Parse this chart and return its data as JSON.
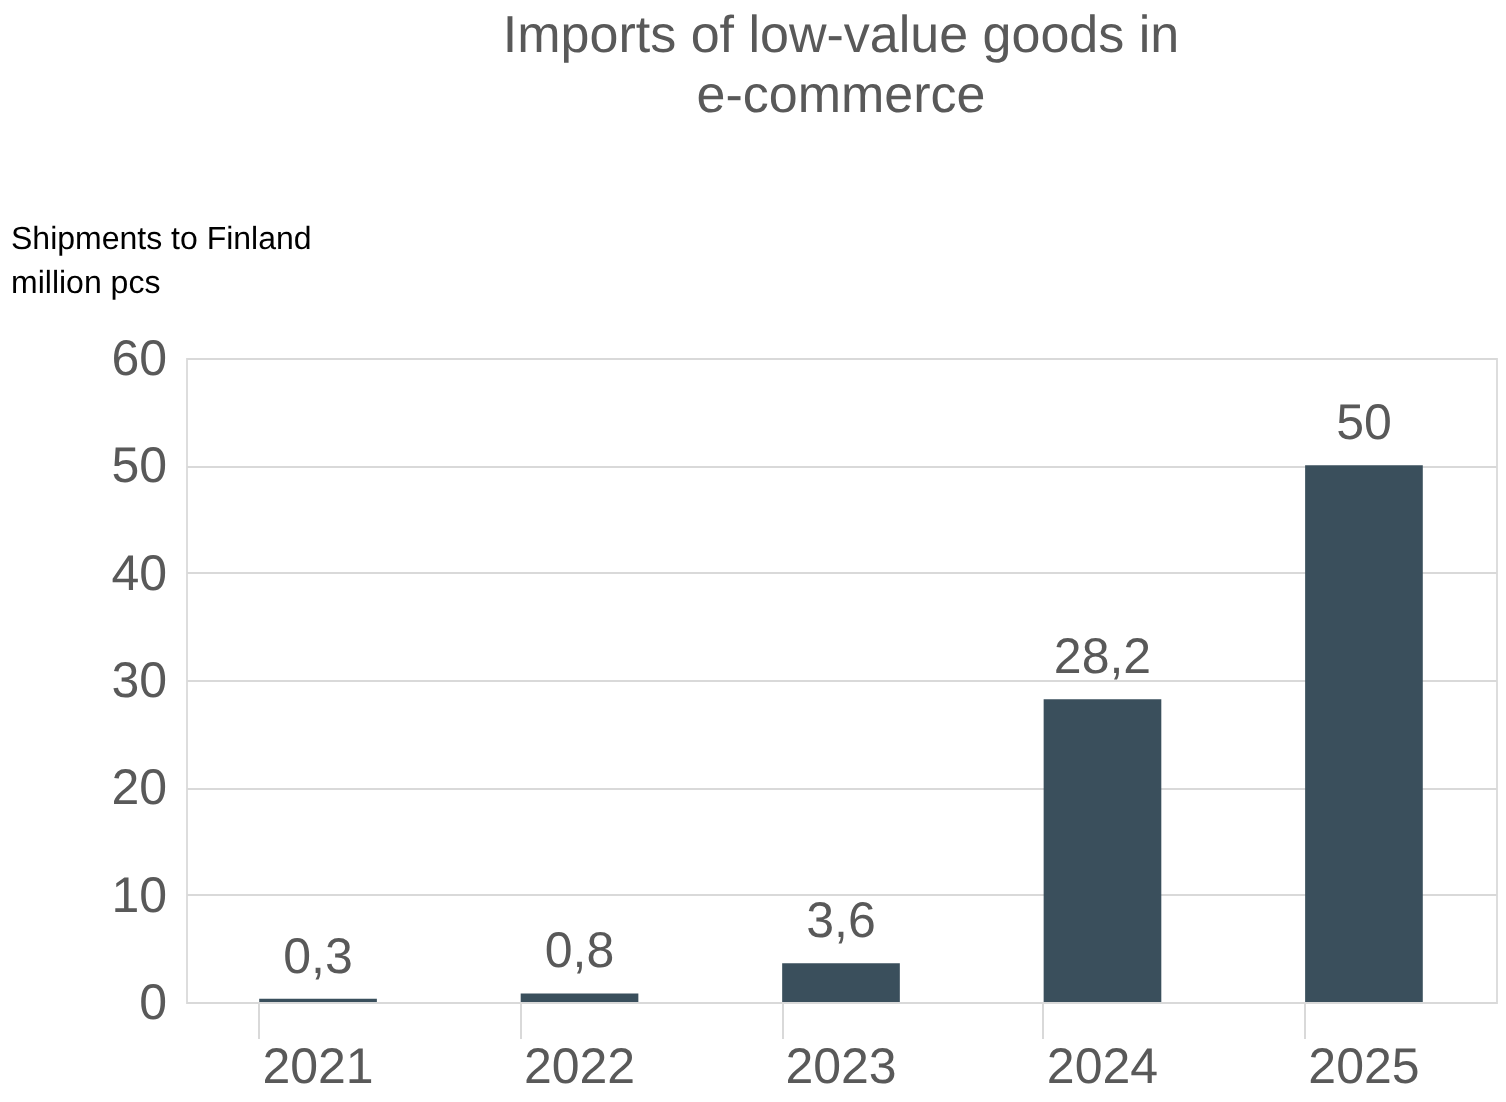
{
  "chart_data": {
    "type": "bar",
    "title": "Imports of low-value goods in e-commerce",
    "ylabel": "Shipments to Finland million pcs",
    "categories": [
      "2021",
      "2022",
      "2023",
      "2024",
      "2025"
    ],
    "values": [
      0.3,
      0.8,
      3.6,
      28.2,
      50
    ],
    "value_labels": [
      "0,3",
      "0,8",
      "3,6",
      "28,2",
      "50"
    ],
    "color": "#3a4f5c",
    "ylim": [
      0,
      60
    ],
    "yticks": [
      0,
      10,
      20,
      30,
      40,
      50,
      60
    ],
    "grid": "y"
  }
}
